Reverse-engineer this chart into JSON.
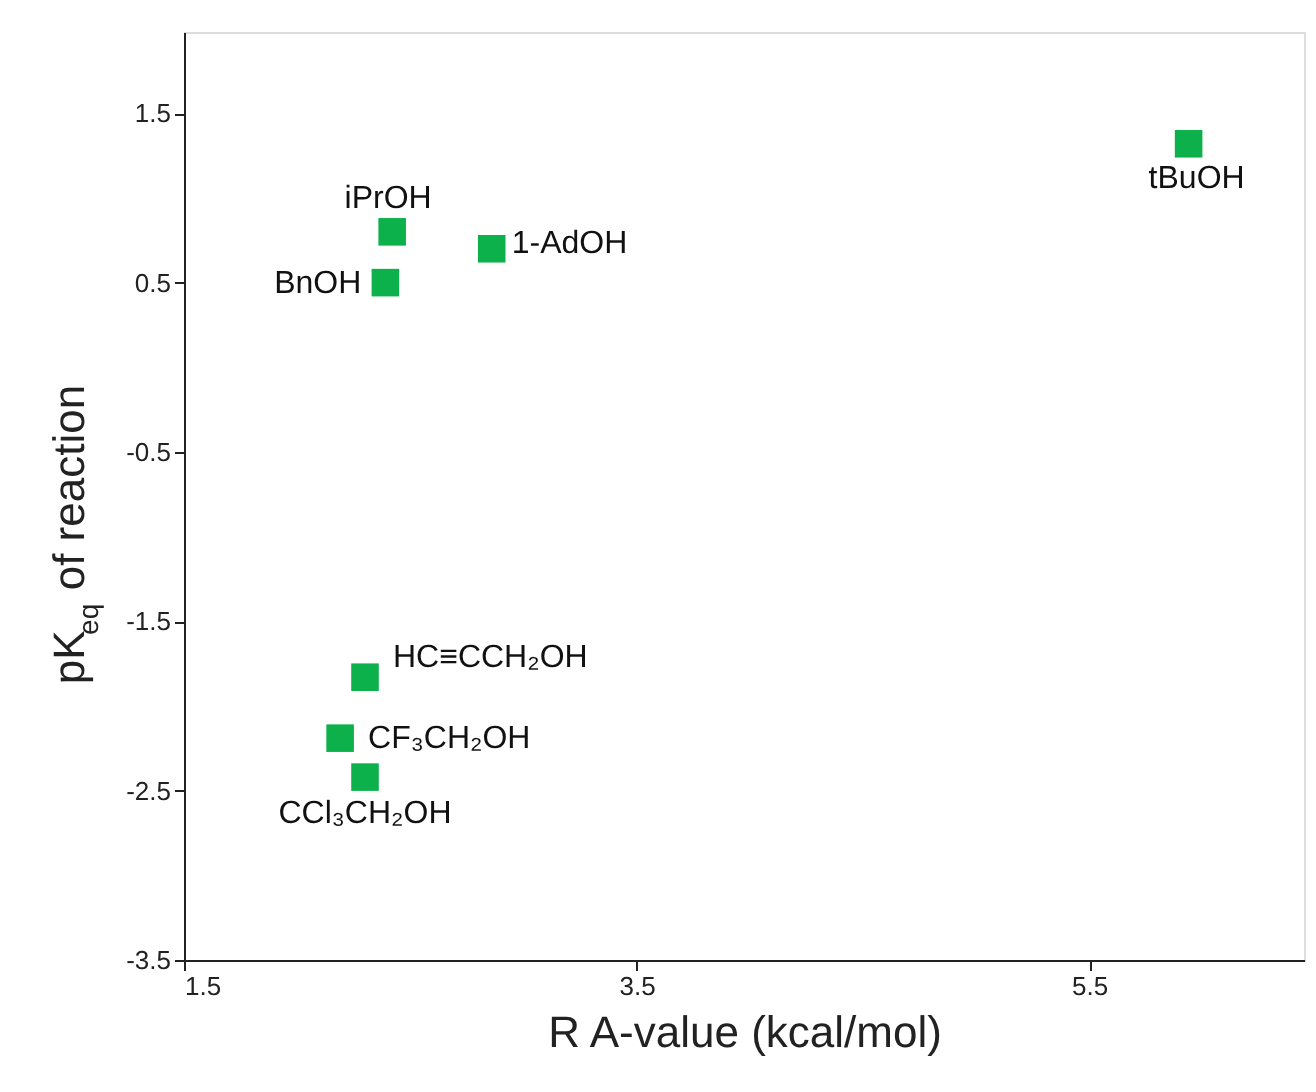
{
  "chart_data": {
    "type": "scatter",
    "xlabel": "R A-value (kcal/mol)",
    "ylabel": "pK$_{eq}$ of reaction",
    "x": [
      5.94,
      2.42,
      2.86,
      2.39,
      2.3,
      2.19,
      2.3
    ],
    "series": [
      {
        "color": "#0db14b",
        "values": [
          1.32,
          0.8,
          0.7,
          0.5,
          -1.83,
          -2.19,
          -2.42
        ]
      }
    ],
    "marker": "square",
    "grid": false,
    "xlim": [
      1.5,
      6.45
    ],
    "xticks": [
      1.5,
      3.5,
      5.5
    ],
    "ylim": [
      -3.5,
      1.98
    ],
    "yticks": [
      -3.5,
      -2.5,
      -1.5,
      -0.5,
      0.5,
      1.5
    ],
    "annotations": [
      {
        "text": "tBuOH",
        "x": 5.94,
        "y": 1.32
      },
      {
        "text": "iPrOH",
        "x": 2.42,
        "y": 0.8
      },
      {
        "text": "1-AdOH",
        "x": 2.86,
        "y": 0.7
      },
      {
        "text": "BnOH",
        "x": 2.39,
        "y": 0.5
      },
      {
        "text": "HC≡CCH₂OH",
        "x": 2.3,
        "y": -1.83
      },
      {
        "text": "CF₃CH₂OH",
        "x": 2.19,
        "y": -2.19
      },
      {
        "text": "CCl₃CH₂OH",
        "x": 2.3,
        "y": -2.42
      }
    ]
  }
}
